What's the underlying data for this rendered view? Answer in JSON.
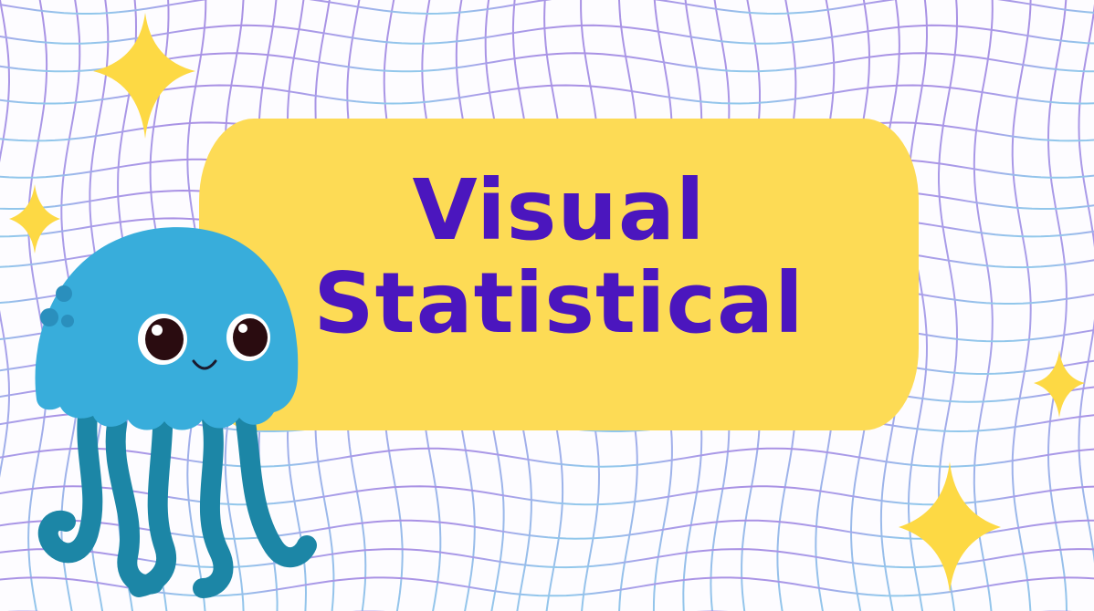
{
  "slide": {
    "title_line_1": "Visual",
    "title_line_2": "Statistical"
  },
  "colors": {
    "background": "#fdfcff",
    "grid_purple": "#9b7fe0",
    "grid_blue": "#7fb6e6",
    "title_box": "#fddb55",
    "title_text": "#4b16be",
    "sparkle": "#fdd944",
    "jellyfish_body": "#38addb",
    "jellyfish_tentacles": "#1c86a6"
  },
  "icons": [
    "sparkle-icon",
    "jellyfish-icon"
  ]
}
